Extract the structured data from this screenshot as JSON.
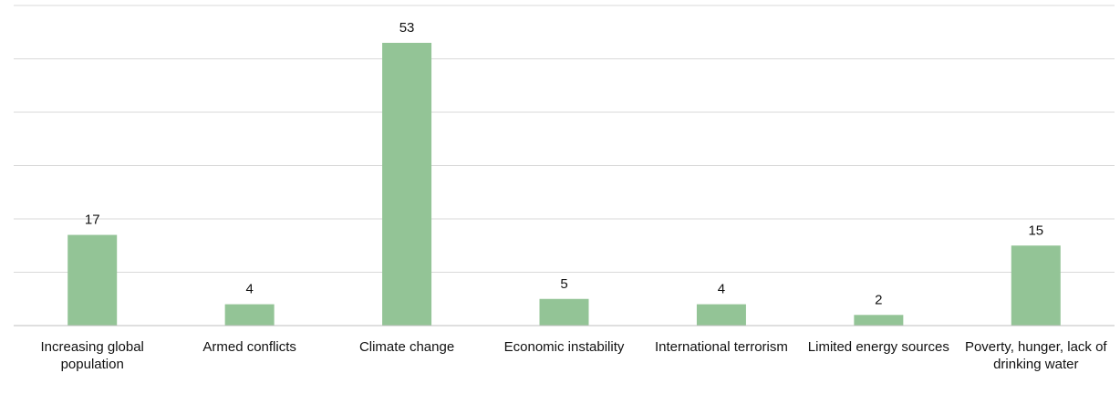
{
  "chart_data": {
    "type": "bar",
    "categories": [
      "Increasing global population",
      "Armed conflicts",
      "Climate change",
      "Economic instability",
      "International terrorism",
      "Limited energy sources",
      "Poverty, hunger, lack of drinking water"
    ],
    "values": [
      17,
      4,
      53,
      5,
      4,
      2,
      15
    ],
    "title": "",
    "xlabel": "",
    "ylabel": "",
    "ylim": [
      0,
      60
    ],
    "grid": true,
    "y_tick_labels_shown": false,
    "data_labels_shown": true,
    "legend": "none"
  },
  "colors": {
    "bar": "#93c496",
    "gridline": "#d9d9d9",
    "axis": "#bfbfbf",
    "text": "#111111"
  }
}
